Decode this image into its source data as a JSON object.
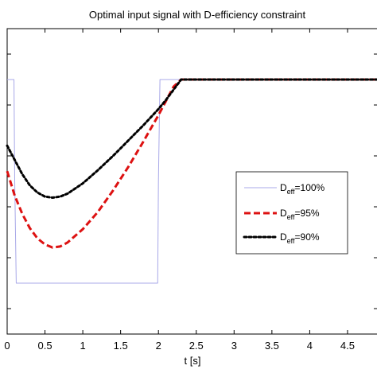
{
  "chart_data": {
    "type": "line",
    "title": "Optimal input signal with D-efficiency constraint",
    "xlabel": "t [s]",
    "ylabel": "",
    "xlim": [
      0,
      4.9
    ],
    "ylim": [
      -1.5,
      1.5
    ],
    "x_ticks": [
      0,
      0.5,
      1,
      1.5,
      2,
      2.5,
      3,
      3.5,
      4,
      4.5
    ],
    "x_tick_labels": [
      "0",
      "0.5",
      "1",
      "1.5",
      "2",
      "2.5",
      "3",
      "3.5",
      "4",
      "4.5"
    ],
    "y_ticks": [
      -1.25,
      -0.75,
      -0.25,
      0.25,
      0.75,
      1.25
    ],
    "grid": false,
    "legend_position": "right",
    "series": [
      {
        "name_main": "D",
        "name_sub": "eff",
        "name_suffix": "=100%",
        "color": "#a8a8e8",
        "style": "solid",
        "x": [
          0,
          0.09,
          0.1,
          0.12,
          0.5,
          1.0,
          1.5,
          1.95,
          1.99,
          2.0,
          2.02,
          2.3,
          3.0,
          4.0,
          4.9
        ],
        "y": [
          1.0,
          1.0,
          0.0,
          -1.0,
          -1.0,
          -1.0,
          -1.0,
          -1.0,
          -1.0,
          0.0,
          1.0,
          1.0,
          1.0,
          1.0,
          1.0
        ]
      },
      {
        "name_main": "D",
        "name_sub": "eff",
        "name_suffix": "=95%",
        "color": "#dd1111",
        "style": "dashed",
        "x": [
          0,
          0.1,
          0.2,
          0.3,
          0.4,
          0.5,
          0.6,
          0.7,
          0.8,
          1.0,
          1.2,
          1.4,
          1.6,
          1.8,
          2.0,
          2.1,
          2.2,
          2.3,
          3.0,
          4.0,
          4.9
        ],
        "y": [
          0.1,
          -0.14,
          -0.32,
          -0.46,
          -0.56,
          -0.62,
          -0.65,
          -0.64,
          -0.6,
          -0.47,
          -0.3,
          -0.09,
          0.14,
          0.39,
          0.65,
          0.79,
          0.93,
          1.0,
          1.0,
          1.0,
          1.0
        ]
      },
      {
        "name_main": "D",
        "name_sub": "eff",
        "name_suffix": "=90%",
        "color": "#000000",
        "style": "dotted",
        "x": [
          0,
          0.1,
          0.2,
          0.3,
          0.4,
          0.5,
          0.6,
          0.7,
          0.8,
          1.0,
          1.2,
          1.4,
          1.6,
          1.8,
          2.0,
          2.1,
          2.2,
          2.3,
          3.0,
          4.0,
          4.9
        ],
        "y": [
          0.35,
          0.21,
          0.07,
          -0.04,
          -0.11,
          -0.15,
          -0.16,
          -0.15,
          -0.12,
          -0.02,
          0.11,
          0.25,
          0.4,
          0.55,
          0.71,
          0.8,
          0.9,
          1.0,
          1.0,
          1.0,
          1.0
        ]
      }
    ]
  }
}
